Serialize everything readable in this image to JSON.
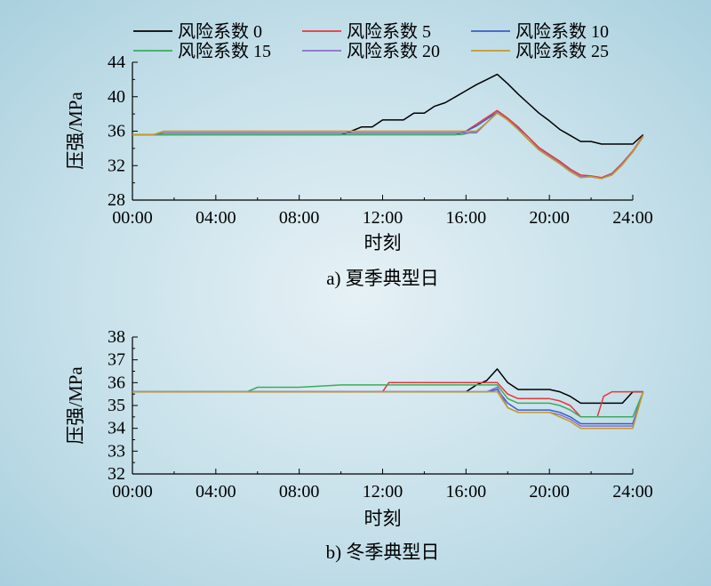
{
  "chart_data": [
    {
      "type": "line",
      "caption": "a) 夏季典型日",
      "xlabel": "时刻",
      "ylabel": "压强/MPa",
      "xlim": [
        0,
        24
      ],
      "ylim": [
        28,
        44
      ],
      "xticks": [
        "00:00",
        "04:00",
        "08:00",
        "12:00",
        "16:00",
        "20:00",
        "24:00"
      ],
      "yticks": [
        28,
        32,
        36,
        40,
        44
      ],
      "legend_position": "top",
      "series": [
        {
          "name": "风险系数 0",
          "color": "#000000",
          "x": [
            0,
            1,
            1.5,
            10,
            10.5,
            11,
            11.5,
            12,
            12.5,
            13,
            13.5,
            14,
            14.5,
            15,
            15.5,
            16,
            16.5,
            17,
            17.5,
            18,
            18.5,
            19,
            19.5,
            20,
            20.5,
            21,
            21.5,
            22,
            22.5,
            23,
            23.5,
            24,
            24.5
          ],
          "values": [
            35.6,
            35.6,
            35.6,
            35.6,
            36.0,
            36.5,
            36.5,
            37.3,
            37.3,
            37.3,
            38.1,
            38.1,
            38.9,
            39.3,
            40.0,
            40.7,
            41.4,
            42.0,
            42.6,
            41.5,
            40.3,
            39.2,
            38.1,
            37.2,
            36.2,
            35.5,
            34.8,
            34.8,
            34.5,
            34.5,
            34.5,
            34.5,
            35.6
          ]
        },
        {
          "name": "风险系数 5",
          "color": "#e8343c",
          "x": [
            0,
            1,
            1.5,
            14.8,
            15.5,
            16,
            16.5,
            17,
            17.5,
            18,
            18.5,
            19,
            19.5,
            20,
            20.5,
            21,
            21.5,
            22,
            22.5,
            23,
            23.5,
            24,
            24.5
          ],
          "values": [
            35.6,
            35.6,
            35.6,
            35.6,
            35.6,
            36.0,
            36.8,
            37.6,
            38.4,
            37.5,
            36.5,
            35.3,
            34.1,
            33.3,
            32.5,
            31.6,
            30.9,
            30.8,
            30.6,
            31.1,
            32.3,
            33.7,
            35.5
          ]
        },
        {
          "name": "风险系数 10",
          "color": "#3a5cc6",
          "x": [
            0,
            1,
            1.5,
            15.5,
            16,
            16.5,
            17,
            17.5,
            18,
            18.5,
            19,
            19.5,
            20,
            20.5,
            21,
            21.5,
            22,
            22.5,
            23,
            23.5,
            24,
            24.5
          ],
          "values": [
            35.6,
            35.6,
            35.6,
            35.6,
            36.0,
            36.6,
            37.4,
            38.2,
            37.3,
            36.3,
            35.0,
            33.9,
            33.1,
            32.3,
            31.4,
            30.7,
            30.7,
            30.5,
            31.0,
            32.2,
            33.6,
            35.4
          ]
        },
        {
          "name": "风险系数 15",
          "color": "#3faa5c",
          "x": [
            0,
            1,
            1.5,
            15.8,
            16.5,
            17,
            17.5,
            18,
            18.5,
            19,
            19.5,
            20,
            20.5,
            21,
            21.5,
            22,
            22.5,
            23,
            23.5,
            24,
            24.5
          ],
          "values": [
            35.6,
            35.6,
            35.6,
            35.6,
            36.0,
            37.0,
            38.2,
            37.3,
            36.2,
            35.0,
            33.9,
            33.1,
            32.3,
            31.4,
            30.7,
            30.7,
            30.5,
            31.0,
            32.2,
            33.6,
            35.4
          ]
        },
        {
          "name": "风险系数 20",
          "color": "#8a6fc6",
          "x": [
            0,
            1,
            1.5,
            16,
            16.5,
            17,
            17.5,
            18,
            18.5,
            19,
            19.5,
            20,
            20.5,
            21,
            21.5,
            22,
            22.5,
            23,
            23.5,
            24,
            24.5
          ],
          "values": [
            35.6,
            35.6,
            35.8,
            35.8,
            35.8,
            37.0,
            38.2,
            37.3,
            36.2,
            35.0,
            33.9,
            33.1,
            32.3,
            31.4,
            30.7,
            30.7,
            30.5,
            31.0,
            32.2,
            33.6,
            35.4
          ]
        },
        {
          "name": "风险系数 25",
          "color": "#c49a2c",
          "x": [
            0,
            1,
            1.5,
            16.5,
            17,
            17.5,
            18,
            18.5,
            19,
            19.5,
            20,
            20.5,
            21,
            21.5,
            22,
            22.5,
            23,
            23.5,
            24,
            24.5
          ],
          "values": [
            35.6,
            35.6,
            36.0,
            36.0,
            37.0,
            38.1,
            37.3,
            36.2,
            35.0,
            33.8,
            33.0,
            32.2,
            31.3,
            30.6,
            30.7,
            30.5,
            30.9,
            32.1,
            33.6,
            35.4
          ]
        }
      ]
    },
    {
      "type": "line",
      "caption": "b) 冬季典型日",
      "xlabel": "时刻",
      "ylabel": "压强/MPa",
      "xlim": [
        0,
        24
      ],
      "ylim": [
        32,
        38
      ],
      "xticks": [
        "00:00",
        "04:00",
        "08:00",
        "12:00",
        "16:00",
        "20:00",
        "24:00"
      ],
      "yticks": [
        32,
        33,
        34,
        35,
        36,
        37,
        38
      ],
      "series": [
        {
          "name": "风险系数 0",
          "color": "#000000",
          "x": [
            0,
            16,
            16.5,
            17,
            17.5,
            18,
            18.5,
            19,
            19.5,
            20,
            20.5,
            21,
            21.5,
            22,
            22.5,
            23,
            23.5,
            24,
            24.5
          ],
          "values": [
            35.6,
            35.6,
            35.9,
            36.1,
            36.6,
            36.0,
            35.7,
            35.7,
            35.7,
            35.7,
            35.6,
            35.4,
            35.1,
            35.1,
            35.1,
            35.1,
            35.1,
            35.6,
            35.6
          ]
        },
        {
          "name": "风险系数 5",
          "color": "#e8343c",
          "x": [
            0,
            12,
            12.3,
            17.5,
            18,
            18.5,
            19,
            19.5,
            20,
            20.5,
            21,
            21.5,
            22,
            22.3,
            22.6,
            23,
            24,
            24.5
          ],
          "values": [
            35.6,
            35.6,
            36.0,
            36.0,
            35.5,
            35.3,
            35.3,
            35.3,
            35.3,
            35.2,
            35.0,
            34.5,
            34.5,
            34.5,
            35.4,
            35.6,
            35.6,
            35.6
          ]
        },
        {
          "name": "风险系数 10",
          "color": "#3a5cc6",
          "x": [
            0,
            17,
            17.5,
            18,
            18.5,
            19,
            19.5,
            20,
            20.5,
            21,
            21.5,
            22,
            23,
            24,
            24.5
          ],
          "values": [
            35.6,
            35.6,
            35.7,
            35.1,
            34.8,
            34.8,
            34.8,
            34.8,
            34.7,
            34.5,
            34.2,
            34.2,
            34.2,
            34.2,
            35.6
          ]
        },
        {
          "name": "风险系数 15",
          "color": "#3faa5c",
          "x": [
            0,
            5.5,
            6,
            7.5,
            8,
            9,
            10,
            11,
            12,
            17,
            17.5,
            18,
            18.5,
            19,
            19.5,
            20,
            20.5,
            21,
            21.5,
            22,
            23,
            24,
            24.5
          ],
          "values": [
            35.6,
            35.6,
            35.8,
            35.8,
            35.8,
            35.85,
            35.9,
            35.9,
            35.9,
            35.9,
            35.9,
            35.3,
            35.1,
            35.1,
            35.1,
            35.1,
            35.0,
            34.8,
            34.5,
            34.5,
            34.5,
            34.5,
            35.6
          ]
        },
        {
          "name": "风险系数 20",
          "color": "#8a6fc6",
          "x": [
            0,
            17,
            17.5,
            18,
            18.5,
            19,
            19.5,
            20,
            20.5,
            21,
            21.5,
            22,
            23,
            24,
            24.5
          ],
          "values": [
            35.6,
            35.6,
            35.8,
            34.9,
            34.7,
            34.7,
            34.7,
            34.7,
            34.6,
            34.4,
            34.1,
            34.1,
            34.1,
            34.1,
            35.6
          ]
        },
        {
          "name": "风险系数 25",
          "color": "#c49a2c",
          "x": [
            0,
            17,
            17.5,
            18,
            18.5,
            19,
            19.5,
            20,
            20.5,
            21,
            21.5,
            22,
            23,
            24,
            24.5
          ],
          "values": [
            35.6,
            35.6,
            35.6,
            34.9,
            34.7,
            34.7,
            34.7,
            34.7,
            34.5,
            34.3,
            34.0,
            34.0,
            34.0,
            34.0,
            35.6
          ]
        }
      ]
    }
  ]
}
